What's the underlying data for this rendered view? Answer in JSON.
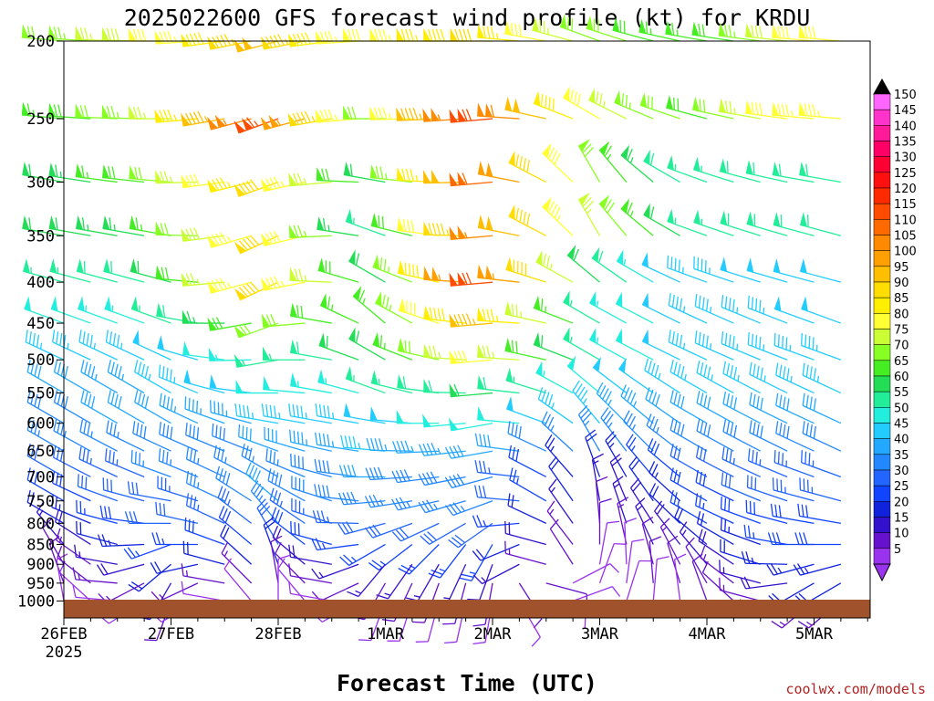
{
  "chart_data": {
    "type": "wind-barb time-height",
    "title": "2025022600 GFS forecast wind profile (kt) for KRDU",
    "xlabel": "Forecast Time (UTC)",
    "ylabel": "",
    "y_ticks": [
      "200",
      "250",
      "300",
      "350",
      "400",
      "450",
      "500",
      "550",
      "600",
      "650",
      "700",
      "750",
      "800",
      "850",
      "900",
      "950",
      "1000"
    ],
    "x_ticks": [
      "26FEB",
      "27FEB",
      "28FEB",
      "1MAR",
      "2MAR",
      "3MAR",
      "4MAR",
      "5MAR"
    ],
    "x_year": "2025",
    "colorbar_values": [
      150,
      145,
      140,
      135,
      130,
      125,
      120,
      115,
      110,
      105,
      100,
      95,
      90,
      85,
      80,
      75,
      70,
      65,
      60,
      55,
      50,
      45,
      40,
      35,
      30,
      25,
      20,
      15,
      10,
      5
    ],
    "colorbar_colors": [
      "#ff66ff",
      "#ff33cc",
      "#ff1a99",
      "#ff0066",
      "#ff0033",
      "#ff1010",
      "#ff2a00",
      "#ff4c00",
      "#ff6a00",
      "#ff8a00",
      "#ffa000",
      "#ffbf00",
      "#ffdd00",
      "#ffee00",
      "#ffff33",
      "#ccff33",
      "#88ff22",
      "#44ee22",
      "#22dd55",
      "#22ee99",
      "#22eedd",
      "#22ccff",
      "#22a8ff",
      "#2288ff",
      "#2266ff",
      "#1144ff",
      "#1122dd",
      "#3311cc",
      "#6611cc",
      "#9933ee"
    ],
    "credit": "coolwx.com/models",
    "speed_kt_by_level_and_day": {
      "levels": [
        200,
        250,
        300,
        350,
        400,
        450,
        500,
        550,
        600,
        650,
        700,
        750,
        800,
        850,
        900,
        950,
        1000
      ],
      "days": [
        "26FEB",
        "27FEB",
        "28FEB",
        "1MAR",
        "2MAR",
        "3MAR",
        "4MAR",
        "5MAR"
      ],
      "values": [
        [
          72,
          80,
          98,
          80,
          92,
          72,
          65,
          82
        ],
        [
          65,
          75,
          115,
          72,
          118,
          80,
          68,
          85
        ],
        [
          62,
          70,
          92,
          60,
          112,
          70,
          55,
          60
        ],
        [
          60,
          65,
          90,
          55,
          105,
          75,
          55,
          60
        ],
        [
          55,
          60,
          92,
          60,
          118,
          62,
          45,
          50
        ],
        [
          50,
          55,
          72,
          65,
          95,
          55,
          45,
          48
        ],
        [
          45,
          48,
          55,
          62,
          82,
          55,
          45,
          45
        ],
        [
          40,
          45,
          50,
          55,
          60,
          50,
          45,
          45
        ],
        [
          38,
          42,
          45,
          48,
          52,
          45,
          40,
          42
        ],
        [
          35,
          38,
          40,
          45,
          42,
          35,
          38,
          40
        ],
        [
          30,
          35,
          35,
          40,
          38,
          20,
          30,
          35
        ],
        [
          28,
          32,
          40,
          38,
          35,
          15,
          28,
          33
        ],
        [
          22,
          30,
          35,
          32,
          30,
          12,
          25,
          30
        ],
        [
          15,
          25,
          30,
          25,
          25,
          10,
          20,
          28
        ],
        [
          12,
          20,
          20,
          15,
          18,
          8,
          15,
          25
        ],
        [
          10,
          15,
          12,
          10,
          12,
          8,
          12,
          22
        ],
        [
          8,
          10,
          8,
          8,
          8,
          8,
          10,
          15
        ]
      ]
    },
    "direction_deg_by_level_and_day": {
      "values": [
        [
          275,
          270,
          255,
          270,
          270,
          290,
          280,
          275
        ],
        [
          275,
          270,
          250,
          270,
          265,
          300,
          285,
          275
        ],
        [
          280,
          275,
          250,
          280,
          265,
          330,
          290,
          280
        ],
        [
          280,
          280,
          245,
          290,
          265,
          330,
          290,
          285
        ],
        [
          285,
          285,
          245,
          300,
          265,
          310,
          290,
          285
        ],
        [
          290,
          290,
          250,
          310,
          265,
          300,
          295,
          290
        ],
        [
          295,
          295,
          260,
          300,
          265,
          300,
          295,
          290
        ],
        [
          300,
          300,
          270,
          290,
          265,
          310,
          300,
          295
        ],
        [
          300,
          300,
          280,
          280,
          260,
          320,
          300,
          295
        ],
        [
          300,
          295,
          290,
          275,
          260,
          330,
          300,
          295
        ],
        [
          300,
          290,
          300,
          270,
          255,
          340,
          300,
          290
        ],
        [
          300,
          280,
          310,
          265,
          250,
          350,
          300,
          285
        ],
        [
          300,
          270,
          320,
          255,
          235,
          355,
          300,
          280
        ],
        [
          320,
          250,
          330,
          240,
          210,
          360,
          310,
          270
        ],
        [
          330,
          230,
          340,
          220,
          200,
          10,
          320,
          255
        ],
        [
          340,
          210,
          350,
          210,
          190,
          20,
          330,
          240
        ],
        [
          350,
          200,
          360,
          200,
          190,
          30,
          340,
          230
        ]
      ]
    }
  }
}
